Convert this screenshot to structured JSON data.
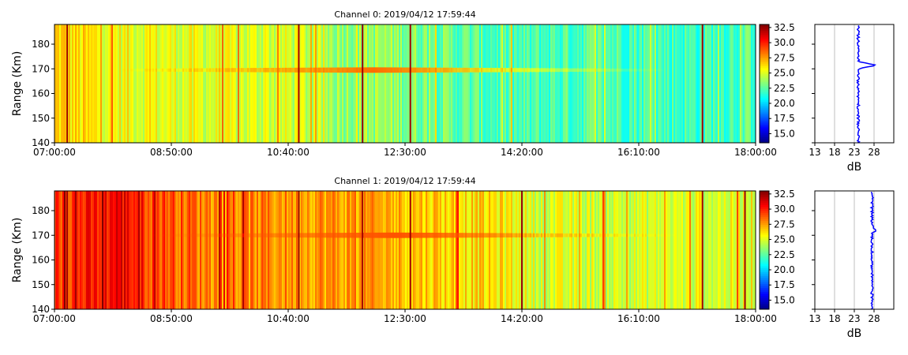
{
  "colormap": [
    "#00007f",
    "#0000ff",
    "#007fff",
    "#00ffff",
    "#7fff7f",
    "#ffff00",
    "#ff7f00",
    "#ff0000",
    "#7f0000"
  ],
  "chart_data": [
    {
      "type": "heatmap",
      "title": "Channel 0: 2019/04/12 17:59:44",
      "ylabel": "Range (Km)",
      "xlim": [
        "07:00:00",
        "18:00:00"
      ],
      "x_ticks": [
        "07:00:00",
        "08:50:00",
        "10:40:00",
        "12:30:00",
        "14:20:00",
        "16:10:00",
        "18:00:00"
      ],
      "ylim": [
        140,
        188
      ],
      "y_ticks": [
        140,
        150,
        160,
        170,
        180
      ],
      "color_range": [
        13.5,
        33
      ],
      "colorbar_ticks": [
        "15.0",
        "17.5",
        "20.0",
        "22.5",
        "25.0",
        "27.5",
        "30.0",
        "32.5"
      ],
      "echo_layer": {
        "range_km": 169.5,
        "start": "08:00:00",
        "end": "16:40:00",
        "peak": "12:00:00",
        "peak_db": 28.5
      },
      "background_profile": [
        {
          "time": "07:00:00",
          "db": 26.5
        },
        {
          "time": "08:00:00",
          "db": 25.5
        },
        {
          "time": "09:30:00",
          "db": 25.0
        },
        {
          "time": "10:50:00",
          "db": 24.8
        },
        {
          "time": "11:20:00",
          "db": 24.0
        },
        {
          "time": "12:30:00",
          "db": 23.5
        },
        {
          "time": "13:30:00",
          "db": 22.5
        },
        {
          "time": "14:20:00",
          "db": 22.0
        },
        {
          "time": "15:30:00",
          "db": 22.5
        },
        {
          "time": "17:00:00",
          "db": 22.0
        },
        {
          "time": "18:00:00",
          "db": 22.5
        }
      ],
      "interference_lines": [
        "07:12:00",
        "10:50:00",
        "11:50:00",
        "12:35:00",
        "17:10:00"
      ],
      "profile": {
        "xlabel": "dB",
        "xlim": [
          13,
          33
        ],
        "x_ticks": [
          13,
          18,
          23,
          28
        ],
        "grid": true,
        "baseline_db": 24.0,
        "peak": {
          "range_km": 171.5,
          "db": 28.3
        }
      }
    },
    {
      "type": "heatmap",
      "title": "Channel 1: 2019/04/12 17:59:44",
      "ylabel": "Range (Km)",
      "xlim": [
        "07:00:00",
        "18:00:00"
      ],
      "x_ticks": [
        "07:00:00",
        "08:50:00",
        "10:40:00",
        "12:30:00",
        "14:20:00",
        "16:10:00",
        "18:00:00"
      ],
      "ylim": [
        140,
        188
      ],
      "y_ticks": [
        140,
        150,
        160,
        170,
        180
      ],
      "color_range": [
        13.5,
        33
      ],
      "colorbar_ticks": [
        "15.0",
        "17.5",
        "20.0",
        "22.5",
        "25.0",
        "27.5",
        "30.0",
        "32.5"
      ],
      "echo_layer": {
        "range_km": 170,
        "start": "08:30:00",
        "end": "16:50:00",
        "peak": "12:20:00",
        "peak_db": 29.0
      },
      "background_profile": [
        {
          "time": "07:00:00",
          "db": 29.5
        },
        {
          "time": "07:40:00",
          "db": 30.0
        },
        {
          "time": "08:00:00",
          "db": 31.0
        },
        {
          "time": "08:30:00",
          "db": 29.5
        },
        {
          "time": "09:30:00",
          "db": 28.0
        },
        {
          "time": "11:00:00",
          "db": 27.8
        },
        {
          "time": "12:30:00",
          "db": 27.0
        },
        {
          "time": "14:00:00",
          "db": 26.0
        },
        {
          "time": "14:30:00",
          "db": 25.0
        },
        {
          "time": "16:00:00",
          "db": 24.8
        },
        {
          "time": "17:30:00",
          "db": 25.0
        },
        {
          "time": "18:00:00",
          "db": 25.5
        }
      ],
      "interference_lines": [
        "07:12:00",
        "07:20:00",
        "10:50:00",
        "11:50:00",
        "12:35:00",
        "14:20:00",
        "17:10:00",
        "17:50:00"
      ],
      "profile": {
        "xlabel": "dB",
        "xlim": [
          13,
          33
        ],
        "x_ticks": [
          13,
          18,
          23,
          28
        ],
        "grid": true,
        "baseline_db": 27.5,
        "peak": {
          "range_km": 172,
          "db": 28.5
        }
      }
    }
  ]
}
